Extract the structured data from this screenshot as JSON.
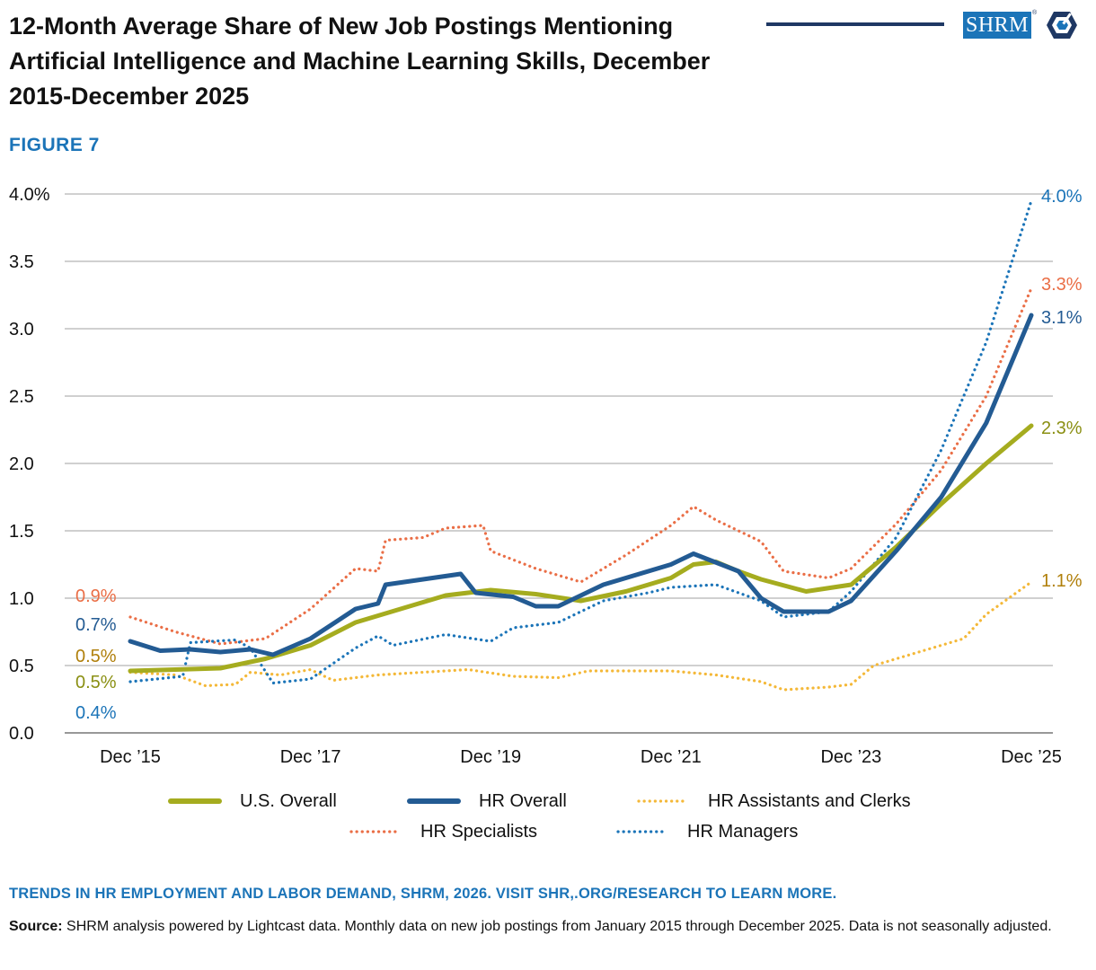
{
  "title": "12-Month Average Share of New Job Postings Mentioning Artificial Intelligence and Machine Learning Skills, December 2015-December 2025",
  "figure_label": "FIGURE 7",
  "logo_text": "SHRM",
  "logo_mark": "®",
  "footer_note": "TRENDS IN HR EMPLOYMENT AND LABOR DEMAND, SHRM, 2026. VISIT SHR,.ORG/RESEARCH TO LEARN MORE.",
  "source_label": "Source:",
  "source_text": "SHRM analysis powered by Lightcast data. Monthly data on new job postings from January 2015 through December 2025. Data is not seasonally adjusted.",
  "chart_data": {
    "type": "line",
    "title": "12-Month Average Share of New Job Postings Mentioning Artificial Intelligence and Machine Learning Skills, December 2015-December 2025",
    "xlabel": "",
    "ylabel": "",
    "ylim": [
      0,
      4.0
    ],
    "y_ticks": [
      "4.0%",
      "3.5",
      "3.0",
      "2.5",
      "2.0",
      "1.5",
      "1.0",
      "0.5",
      "0.0"
    ],
    "y_tick_values": [
      4.0,
      3.5,
      3.0,
      2.5,
      2.0,
      1.5,
      1.0,
      0.5,
      0.0
    ],
    "x_tick_labels": [
      "Dec ’15",
      "Dec ’17",
      "Dec ’19",
      "Dec ’21",
      "Dec ’23",
      "Dec ’25"
    ],
    "x_tick_positions": [
      "2015-12",
      "2017-12",
      "2019-12",
      "2021-12",
      "2023-12",
      "2025-12"
    ],
    "x_range": [
      "2015-12",
      "2025-12"
    ],
    "grid": true,
    "legend_position": "bottom",
    "series": [
      {
        "name": "U.S. Overall",
        "color": "#a5ac1f",
        "style": "solid",
        "start_label": "0.5%",
        "end_label": "2.3%",
        "points": [
          [
            "2015-12",
            0.46
          ],
          [
            "2016-06",
            0.47
          ],
          [
            "2016-12",
            0.48
          ],
          [
            "2017-06",
            0.55
          ],
          [
            "2017-12",
            0.65
          ],
          [
            "2018-06",
            0.82
          ],
          [
            "2018-12",
            0.92
          ],
          [
            "2019-06",
            1.02
          ],
          [
            "2019-12",
            1.06
          ],
          [
            "2020-06",
            1.03
          ],
          [
            "2020-12",
            0.98
          ],
          [
            "2021-06",
            1.05
          ],
          [
            "2021-12",
            1.15
          ],
          [
            "2022-03",
            1.25
          ],
          [
            "2022-06",
            1.27
          ],
          [
            "2022-09",
            1.2
          ],
          [
            "2022-12",
            1.14
          ],
          [
            "2023-06",
            1.05
          ],
          [
            "2023-12",
            1.1
          ],
          [
            "2024-06",
            1.38
          ],
          [
            "2024-12",
            1.7
          ],
          [
            "2025-06",
            2.0
          ],
          [
            "2025-12",
            2.28
          ]
        ]
      },
      {
        "name": "HR Overall",
        "color": "#235b93",
        "style": "solid",
        "start_label": "0.7%",
        "end_label": "3.1%",
        "points": [
          [
            "2015-12",
            0.68
          ],
          [
            "2016-04",
            0.61
          ],
          [
            "2016-08",
            0.62
          ],
          [
            "2016-12",
            0.6
          ],
          [
            "2017-04",
            0.62
          ],
          [
            "2017-07",
            0.58
          ],
          [
            "2017-12",
            0.7
          ],
          [
            "2018-06",
            0.92
          ],
          [
            "2018-09",
            0.96
          ],
          [
            "2018-10",
            1.1
          ],
          [
            "2019-03",
            1.14
          ],
          [
            "2019-08",
            1.18
          ],
          [
            "2019-10",
            1.04
          ],
          [
            "2020-03",
            1.01
          ],
          [
            "2020-06",
            0.94
          ],
          [
            "2020-09",
            0.94
          ],
          [
            "2021-03",
            1.1
          ],
          [
            "2021-12",
            1.25
          ],
          [
            "2022-03",
            1.33
          ],
          [
            "2022-09",
            1.2
          ],
          [
            "2022-12",
            1.0
          ],
          [
            "2023-03",
            0.9
          ],
          [
            "2023-09",
            0.9
          ],
          [
            "2023-12",
            0.98
          ],
          [
            "2024-06",
            1.35
          ],
          [
            "2024-12",
            1.75
          ],
          [
            "2025-06",
            2.3
          ],
          [
            "2025-12",
            3.1
          ]
        ]
      },
      {
        "name": "HR Assistants and Clerks",
        "color": "#f4b838",
        "style": "dotted",
        "start_label": "0.5%",
        "end_label": "1.1%",
        "points": [
          [
            "2015-12",
            0.45
          ],
          [
            "2016-06",
            0.43
          ],
          [
            "2016-10",
            0.35
          ],
          [
            "2017-02",
            0.36
          ],
          [
            "2017-04",
            0.45
          ],
          [
            "2017-08",
            0.43
          ],
          [
            "2017-12",
            0.47
          ],
          [
            "2018-03",
            0.39
          ],
          [
            "2018-09",
            0.43
          ],
          [
            "2019-03",
            0.45
          ],
          [
            "2019-09",
            0.47
          ],
          [
            "2020-03",
            0.42
          ],
          [
            "2020-09",
            0.41
          ],
          [
            "2021-01",
            0.46
          ],
          [
            "2021-12",
            0.46
          ],
          [
            "2022-06",
            0.43
          ],
          [
            "2022-12",
            0.38
          ],
          [
            "2023-03",
            0.32
          ],
          [
            "2023-09",
            0.34
          ],
          [
            "2023-12",
            0.36
          ],
          [
            "2024-03",
            0.5
          ],
          [
            "2024-09",
            0.6
          ],
          [
            "2025-03",
            0.7
          ],
          [
            "2025-06",
            0.88
          ],
          [
            "2025-12",
            1.12
          ]
        ]
      },
      {
        "name": "HR Specialists",
        "color": "#ea6e46",
        "style": "dotted",
        "start_label": "0.9%",
        "end_label": "3.3%",
        "points": [
          [
            "2015-12",
            0.86
          ],
          [
            "2016-06",
            0.75
          ],
          [
            "2016-12",
            0.66
          ],
          [
            "2017-06",
            0.7
          ],
          [
            "2017-12",
            0.92
          ],
          [
            "2018-06",
            1.22
          ],
          [
            "2018-09",
            1.2
          ],
          [
            "2018-10",
            1.43
          ],
          [
            "2019-03",
            1.45
          ],
          [
            "2019-06",
            1.52
          ],
          [
            "2019-11",
            1.54
          ],
          [
            "2019-12",
            1.35
          ],
          [
            "2020-06",
            1.22
          ],
          [
            "2020-12",
            1.12
          ],
          [
            "2021-06",
            1.32
          ],
          [
            "2021-12",
            1.54
          ],
          [
            "2022-03",
            1.68
          ],
          [
            "2022-06",
            1.58
          ],
          [
            "2022-12",
            1.42
          ],
          [
            "2023-03",
            1.2
          ],
          [
            "2023-09",
            1.15
          ],
          [
            "2023-12",
            1.22
          ],
          [
            "2024-06",
            1.55
          ],
          [
            "2024-12",
            1.95
          ],
          [
            "2025-06",
            2.5
          ],
          [
            "2025-12",
            3.3
          ]
        ]
      },
      {
        "name": "HR Managers",
        "color": "#1b74b8",
        "style": "dotted",
        "start_label": "0.4%",
        "end_label": "4.0%",
        "points": [
          [
            "2015-12",
            0.38
          ],
          [
            "2016-07",
            0.42
          ],
          [
            "2016-08",
            0.67
          ],
          [
            "2017-02",
            0.69
          ],
          [
            "2017-04",
            0.63
          ],
          [
            "2017-07",
            0.37
          ],
          [
            "2017-12",
            0.4
          ],
          [
            "2018-06",
            0.63
          ],
          [
            "2018-09",
            0.72
          ],
          [
            "2018-11",
            0.65
          ],
          [
            "2019-06",
            0.73
          ],
          [
            "2019-12",
            0.68
          ],
          [
            "2020-03",
            0.78
          ],
          [
            "2020-09",
            0.82
          ],
          [
            "2021-03",
            0.98
          ],
          [
            "2021-09",
            1.04
          ],
          [
            "2021-12",
            1.08
          ],
          [
            "2022-06",
            1.1
          ],
          [
            "2022-12",
            0.98
          ],
          [
            "2023-03",
            0.86
          ],
          [
            "2023-09",
            0.9
          ],
          [
            "2023-12",
            1.05
          ],
          [
            "2024-06",
            1.45
          ],
          [
            "2024-12",
            2.1
          ],
          [
            "2025-06",
            2.9
          ],
          [
            "2025-12",
            3.95
          ]
        ]
      }
    ]
  }
}
